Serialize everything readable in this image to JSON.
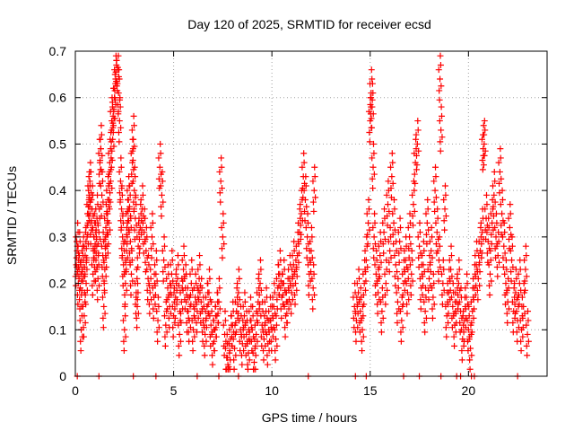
{
  "chart_data": {
    "type": "scatter",
    "title": "Day 120 of 2025, SRMTID for receiver ecsd",
    "xlabel": "GPS time / hours",
    "ylabel": "SRMTID / TECUs",
    "xlim": [
      0,
      24
    ],
    "ylim": [
      0,
      0.7
    ],
    "xticks": [
      0,
      5,
      10,
      15,
      20
    ],
    "yticks": [
      0,
      0.1,
      0.2,
      0.3,
      0.4,
      0.5,
      0.6,
      0.7
    ],
    "grid": true,
    "marker": "+",
    "color": "#ff0000",
    "series": [
      {
        "name": "SRMTID",
        "points": [
          [
            0.05,
            0.24
          ],
          [
            0.1,
            0.28
          ],
          [
            0.15,
            0.2
          ],
          [
            0.2,
            0.26
          ],
          [
            0.25,
            0.19
          ],
          [
            0.3,
            0.1
          ],
          [
            0.35,
            0.23
          ],
          [
            0.4,
            0.25
          ],
          [
            0.45,
            0.13
          ],
          [
            0.5,
            0.26
          ],
          [
            0.55,
            0.2
          ],
          [
            0.6,
            0.3
          ],
          [
            0.65,
            0.35
          ],
          [
            0.7,
            0.39
          ],
          [
            0.75,
            0.41
          ],
          [
            0.8,
            0.33
          ],
          [
            0.85,
            0.36
          ],
          [
            0.9,
            0.22
          ],
          [
            0.95,
            0.3
          ],
          [
            1.0,
            0.28
          ],
          [
            1.05,
            0.25
          ],
          [
            1.1,
            0.34
          ],
          [
            1.15,
            0.21
          ],
          [
            1.2,
            0.31
          ],
          [
            1.25,
            0.46
          ],
          [
            1.3,
            0.49
          ],
          [
            1.35,
            0.39
          ],
          [
            1.4,
            0.26
          ],
          [
            1.45,
            0.15
          ],
          [
            1.5,
            0.23
          ],
          [
            1.55,
            0.32
          ],
          [
            1.6,
            0.28
          ],
          [
            1.65,
            0.38
          ],
          [
            1.7,
            0.33
          ],
          [
            1.75,
            0.46
          ],
          [
            1.8,
            0.42
          ],
          [
            1.85,
            0.55
          ],
          [
            1.9,
            0.51
          ],
          [
            1.95,
            0.57
          ],
          [
            2.0,
            0.6
          ],
          [
            2.05,
            0.64
          ],
          [
            2.1,
            0.68
          ],
          [
            2.15,
            0.66
          ],
          [
            2.2,
            0.61
          ],
          [
            2.25,
            0.55
          ],
          [
            2.3,
            0.42
          ],
          [
            2.35,
            0.36
          ],
          [
            2.4,
            0.3
          ],
          [
            2.45,
            0.24
          ],
          [
            2.5,
            0.1
          ],
          [
            2.55,
            0.2
          ],
          [
            2.6,
            0.27
          ],
          [
            2.65,
            0.33
          ],
          [
            2.7,
            0.38
          ],
          [
            2.75,
            0.36
          ],
          [
            2.8,
            0.29
          ],
          [
            2.85,
            0.22
          ],
          [
            2.9,
            0.46
          ],
          [
            2.95,
            0.51
          ],
          [
            3.0,
            0.4
          ],
          [
            3.05,
            0.34
          ],
          [
            3.1,
            0.18
          ],
          [
            3.15,
            0.15
          ],
          [
            3.2,
            0.28
          ],
          [
            3.3,
            0.32
          ],
          [
            3.4,
            0.36
          ],
          [
            3.5,
            0.31
          ],
          [
            3.6,
            0.27
          ],
          [
            3.7,
            0.21
          ],
          [
            3.8,
            0.18
          ],
          [
            3.9,
            0.3
          ],
          [
            4.0,
            0.17
          ],
          [
            4.1,
            0.22
          ],
          [
            4.2,
            0.12
          ],
          [
            4.3,
            0.45
          ],
          [
            4.4,
            0.39
          ],
          [
            4.5,
            0.25
          ],
          [
            4.6,
            0.11
          ],
          [
            4.7,
            0.19
          ],
          [
            4.8,
            0.15
          ],
          [
            4.9,
            0.22
          ],
          [
            5.0,
            0.13
          ],
          [
            5.1,
            0.17
          ],
          [
            5.2,
            0.21
          ],
          [
            5.3,
            0.09
          ],
          [
            5.4,
            0.16
          ],
          [
            5.5,
            0.23
          ],
          [
            5.6,
            0.19
          ],
          [
            5.7,
            0.14
          ],
          [
            5.8,
            0.12
          ],
          [
            5.9,
            0.2
          ],
          [
            6.0,
            0.1
          ],
          [
            6.1,
            0.17
          ],
          [
            6.2,
            0.14
          ],
          [
            6.3,
            0.21
          ],
          [
            6.4,
            0.16
          ],
          [
            6.5,
            0.12
          ],
          [
            6.6,
            0.09
          ],
          [
            6.7,
            0.15
          ],
          [
            6.8,
            0.18
          ],
          [
            6.9,
            0.11
          ],
          [
            7.0,
            0.07
          ],
          [
            7.1,
            0.1
          ],
          [
            7.2,
            0.13
          ],
          [
            7.3,
            0.16
          ],
          [
            7.4,
            0.42
          ],
          [
            7.5,
            0.3
          ],
          [
            7.6,
            0.09
          ],
          [
            7.7,
            0.04
          ],
          [
            7.8,
            0.02
          ],
          [
            7.9,
            0.08
          ],
          [
            8.0,
            0.11
          ],
          [
            8.1,
            0.06
          ],
          [
            8.2,
            0.14
          ],
          [
            8.3,
            0.18
          ],
          [
            8.4,
            0.1
          ],
          [
            8.5,
            0.07
          ],
          [
            8.6,
            0.13
          ],
          [
            8.7,
            0.09
          ],
          [
            8.8,
            0.05
          ],
          [
            8.9,
            0.12
          ],
          [
            9.0,
            0.1
          ],
          [
            9.1,
            0.03
          ],
          [
            9.2,
            0.09
          ],
          [
            9.3,
            0.16
          ],
          [
            9.4,
            0.2
          ],
          [
            9.5,
            0.11
          ],
          [
            9.6,
            0.08
          ],
          [
            9.7,
            0.14
          ],
          [
            9.8,
            0.07
          ],
          [
            9.9,
            0.12
          ],
          [
            10.0,
            0.1
          ],
          [
            10.1,
            0.15
          ],
          [
            10.2,
            0.08
          ],
          [
            10.3,
            0.19
          ],
          [
            10.4,
            0.22
          ],
          [
            10.5,
            0.17
          ],
          [
            10.6,
            0.2
          ],
          [
            10.7,
            0.13
          ],
          [
            10.8,
            0.16
          ],
          [
            10.9,
            0.21
          ],
          [
            11.0,
            0.18
          ],
          [
            11.1,
            0.24
          ],
          [
            11.2,
            0.2
          ],
          [
            11.3,
            0.26
          ],
          [
            11.4,
            0.31
          ],
          [
            11.5,
            0.35
          ],
          [
            11.6,
            0.43
          ],
          [
            11.7,
            0.38
          ],
          [
            11.8,
            0.3
          ],
          [
            11.9,
            0.22
          ],
          [
            12.0,
            0.27
          ],
          [
            12.1,
            0.19
          ],
          [
            12.15,
            0.4
          ],
          [
            14.2,
            0.15
          ],
          [
            14.3,
            0.12
          ],
          [
            14.4,
            0.18
          ],
          [
            14.5,
            0.14
          ],
          [
            14.6,
            0.1
          ],
          [
            14.7,
            0.2
          ],
          [
            14.8,
            0.25
          ],
          [
            14.9,
            0.33
          ],
          [
            15.0,
            0.55
          ],
          [
            15.05,
            0.61
          ],
          [
            15.1,
            0.58
          ],
          [
            15.15,
            0.45
          ],
          [
            15.2,
            0.3
          ],
          [
            15.3,
            0.22
          ],
          [
            15.4,
            0.18
          ],
          [
            15.5,
            0.26
          ],
          [
            15.6,
            0.14
          ],
          [
            15.7,
            0.31
          ],
          [
            15.8,
            0.2
          ],
          [
            15.9,
            0.37
          ],
          [
            16.0,
            0.27
          ],
          [
            16.1,
            0.43
          ],
          [
            16.2,
            0.33
          ],
          [
            16.3,
            0.24
          ],
          [
            16.4,
            0.16
          ],
          [
            16.5,
            0.29
          ],
          [
            16.6,
            0.12
          ],
          [
            16.7,
            0.2
          ],
          [
            16.8,
            0.25
          ],
          [
            16.9,
            0.18
          ],
          [
            17.0,
            0.3
          ],
          [
            17.1,
            0.22
          ],
          [
            17.2,
            0.37
          ],
          [
            17.3,
            0.46
          ],
          [
            17.4,
            0.5
          ],
          [
            17.5,
            0.28
          ],
          [
            17.6,
            0.19
          ],
          [
            17.7,
            0.24
          ],
          [
            17.8,
            0.14
          ],
          [
            17.9,
            0.33
          ],
          [
            18.0,
            0.21
          ],
          [
            18.1,
            0.27
          ],
          [
            18.2,
            0.17
          ],
          [
            18.3,
            0.4
          ],
          [
            18.4,
            0.31
          ],
          [
            18.5,
            0.25
          ],
          [
            18.55,
            0.64
          ],
          [
            18.6,
            0.53
          ],
          [
            18.7,
            0.2
          ],
          [
            18.8,
            0.36
          ],
          [
            18.9,
            0.13
          ],
          [
            19.0,
            0.18
          ],
          [
            19.1,
            0.23
          ],
          [
            19.2,
            0.15
          ],
          [
            19.3,
            0.11
          ],
          [
            19.4,
            0.16
          ],
          [
            19.5,
            0.2
          ],
          [
            19.6,
            0.14
          ],
          [
            19.7,
            0.08
          ],
          [
            19.8,
            0.12
          ],
          [
            19.9,
            0.17
          ],
          [
            20.0,
            0.1
          ],
          [
            20.1,
            0.06
          ],
          [
            20.2,
            0.14
          ],
          [
            20.3,
            0.19
          ],
          [
            20.4,
            0.24
          ],
          [
            20.5,
            0.21
          ],
          [
            20.6,
            0.27
          ],
          [
            20.7,
            0.31
          ],
          [
            20.75,
            0.49
          ],
          [
            20.8,
            0.5
          ],
          [
            20.9,
            0.34
          ],
          [
            21.0,
            0.29
          ],
          [
            21.1,
            0.22
          ],
          [
            21.2,
            0.33
          ],
          [
            21.3,
            0.39
          ],
          [
            21.4,
            0.3
          ],
          [
            21.5,
            0.26
          ],
          [
            21.6,
            0.44
          ],
          [
            21.7,
            0.35
          ],
          [
            21.8,
            0.28
          ],
          [
            21.9,
            0.2
          ],
          [
            22.0,
            0.16
          ],
          [
            22.1,
            0.32
          ],
          [
            22.2,
            0.25
          ],
          [
            22.3,
            0.14
          ],
          [
            22.4,
            0.18
          ],
          [
            22.5,
            0.12
          ],
          [
            22.6,
            0.2
          ],
          [
            22.7,
            0.1
          ],
          [
            22.8,
            0.15
          ],
          [
            22.9,
            0.23
          ],
          [
            23.0,
            0.09
          ]
        ]
      }
    ],
    "zero_markers_x": [
      0.1,
      1.2,
      2.95,
      4.1,
      6.2,
      7.3,
      8.3,
      11.85,
      14.25,
      14.8,
      16.7,
      17.5,
      18.6,
      19.4,
      19.6,
      20.15,
      20.3,
      22.5
    ]
  }
}
